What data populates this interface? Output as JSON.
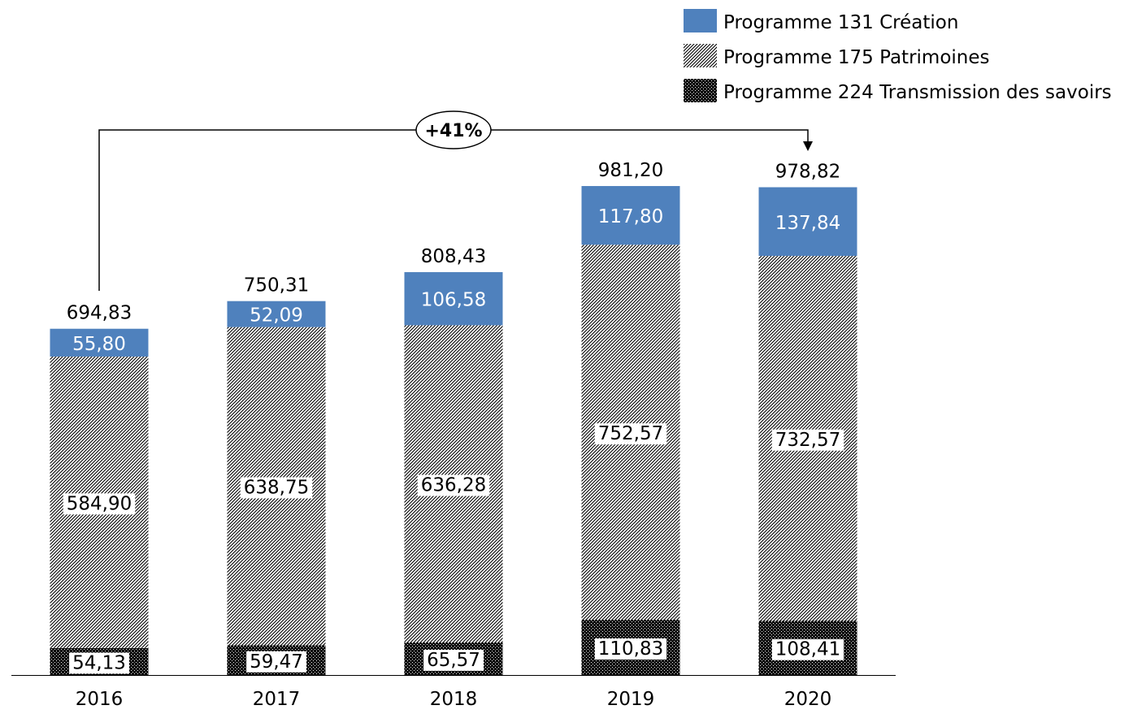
{
  "chart_data": {
    "type": "bar",
    "stacked": true,
    "categories": [
      "2016",
      "2017",
      "2018",
      "2019",
      "2020"
    ],
    "series": [
      {
        "name": "Programme 224 Transmission des savoirs",
        "values": [
          54.13,
          59.47,
          65.57,
          110.83,
          108.41
        ],
        "labels": [
          "54,13",
          "59,47",
          "65,57",
          "110,83",
          "108,41"
        ],
        "fill": "dotted-black"
      },
      {
        "name": "Programme 175 Patrimoines",
        "values": [
          584.9,
          638.75,
          636.28,
          752.57,
          732.57
        ],
        "labels": [
          "584,90",
          "638,75",
          "636,28",
          "752,57",
          "732,57"
        ],
        "fill": "diagonal-hatch"
      },
      {
        "name": "Programme 131 Création",
        "values": [
          55.8,
          52.09,
          106.58,
          117.8,
          137.84
        ],
        "labels": [
          "55,80",
          "52,09",
          "106,58",
          "117,80",
          "137,84"
        ],
        "fill": "#4F81BD"
      }
    ],
    "totals": [
      694.83,
      750.31,
      808.43,
      981.2,
      978.82
    ],
    "total_labels": [
      "694,83",
      "750,31",
      "808,43",
      "981,20",
      "978,82"
    ],
    "annotation": {
      "text": "+41%",
      "from": "2016",
      "to": "2020"
    },
    "legend_position": "top-right",
    "grid": false,
    "ylim": [
      0,
      1000
    ]
  }
}
